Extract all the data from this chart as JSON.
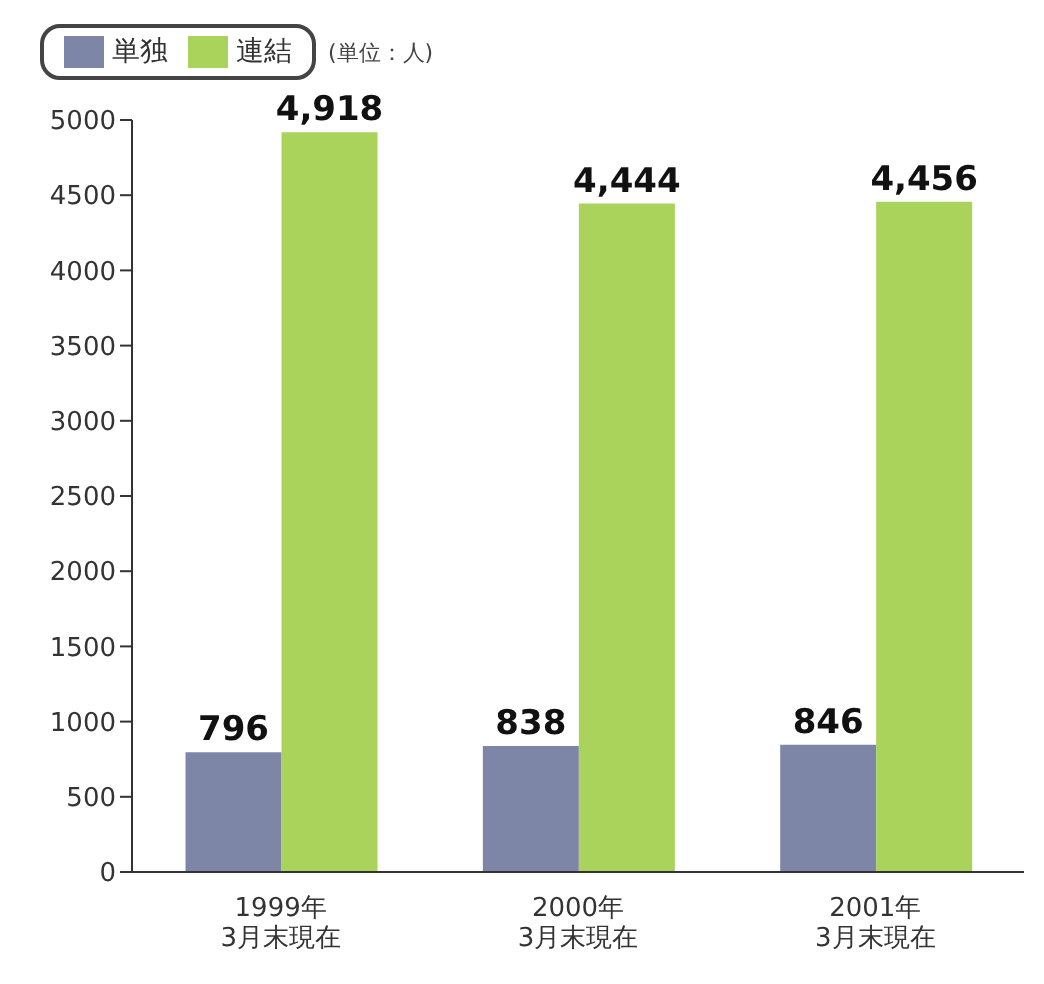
{
  "chart_data": {
    "type": "bar",
    "categories": [
      "1999年\n3月末現在",
      "2000年\n3月末現在",
      "2001年\n3月末現在"
    ],
    "series": [
      {
        "name": "単独",
        "color": "#7d86a6",
        "values": [
          796,
          838,
          846
        ],
        "value_labels": [
          "796",
          "838",
          "846"
        ]
      },
      {
        "name": "連結",
        "color": "#a9d35a",
        "values": [
          4918,
          4444,
          4456
        ],
        "value_labels": [
          "4,918",
          "4,444",
          "4,456"
        ]
      }
    ],
    "ylim": [
      0,
      5000
    ],
    "yticks": [
      0,
      500,
      1000,
      1500,
      2000,
      2500,
      3000,
      3500,
      4000,
      4500,
      5000
    ],
    "annotations": [
      "(単位：人)"
    ],
    "legend": "top left",
    "grid": false
  }
}
